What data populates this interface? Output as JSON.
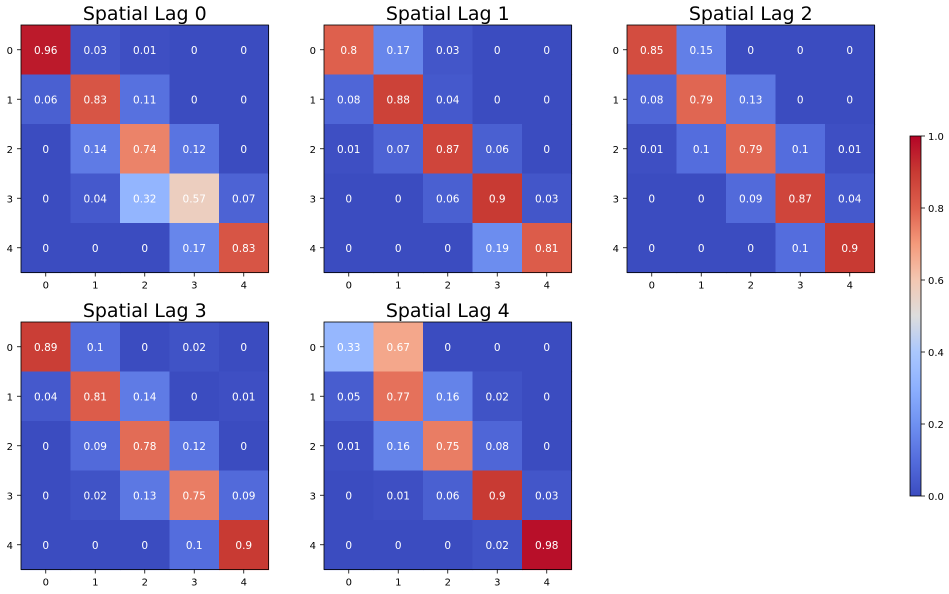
{
  "figure": {
    "colormap": "coolwarm",
    "colorbar": {
      "min": 0.0,
      "max": 1.0,
      "ticks": [
        "0.0",
        "0.2",
        "0.4",
        "0.6",
        "0.8",
        "1.0"
      ]
    }
  },
  "chart_data": [
    {
      "type": "heatmap",
      "title": "Spatial Lag 0",
      "x_ticks": [
        "0",
        "1",
        "2",
        "3",
        "4"
      ],
      "y_ticks": [
        "0",
        "1",
        "2",
        "3",
        "4"
      ],
      "values": [
        [
          0.96,
          0.03,
          0.01,
          0.0,
          0.0
        ],
        [
          0.06,
          0.83,
          0.11,
          0.0,
          0.0
        ],
        [
          0.0,
          0.14,
          0.74,
          0.12,
          0.0
        ],
        [
          0.0,
          0.04,
          0.32,
          0.57,
          0.07
        ],
        [
          0.0,
          0.0,
          0.0,
          0.17,
          0.83
        ]
      ]
    },
    {
      "type": "heatmap",
      "title": "Spatial Lag 1",
      "x_ticks": [
        "0",
        "1",
        "2",
        "3",
        "4"
      ],
      "y_ticks": [
        "0",
        "1",
        "2",
        "3",
        "4"
      ],
      "values": [
        [
          0.8,
          0.17,
          0.03,
          0.0,
          0.0
        ],
        [
          0.08,
          0.88,
          0.04,
          0.0,
          0.0
        ],
        [
          0.01,
          0.07,
          0.87,
          0.06,
          0.0
        ],
        [
          0.0,
          0.0,
          0.06,
          0.9,
          0.03
        ],
        [
          0.0,
          0.0,
          0.0,
          0.19,
          0.81
        ]
      ]
    },
    {
      "type": "heatmap",
      "title": "Spatial Lag 2",
      "x_ticks": [
        "0",
        "1",
        "2",
        "3",
        "4"
      ],
      "y_ticks": [
        "0",
        "1",
        "2",
        "3",
        "4"
      ],
      "values": [
        [
          0.85,
          0.15,
          0.0,
          0.0,
          0.0
        ],
        [
          0.08,
          0.79,
          0.13,
          0.0,
          0.0
        ],
        [
          0.01,
          0.1,
          0.79,
          0.1,
          0.01
        ],
        [
          0.0,
          0.0,
          0.09,
          0.87,
          0.04
        ],
        [
          0.0,
          0.0,
          0.0,
          0.1,
          0.9
        ]
      ]
    },
    {
      "type": "heatmap",
      "title": "Spatial Lag 3",
      "x_ticks": [
        "0",
        "1",
        "2",
        "3",
        "4"
      ],
      "y_ticks": [
        "0",
        "1",
        "2",
        "3",
        "4"
      ],
      "values": [
        [
          0.89,
          0.1,
          0.0,
          0.02,
          0.0
        ],
        [
          0.04,
          0.81,
          0.14,
          0.0,
          0.01
        ],
        [
          0.0,
          0.09,
          0.78,
          0.12,
          0.0
        ],
        [
          0.0,
          0.02,
          0.13,
          0.75,
          0.09
        ],
        [
          0.0,
          0.0,
          0.0,
          0.1,
          0.9
        ]
      ]
    },
    {
      "type": "heatmap",
      "title": "Spatial Lag 4",
      "x_ticks": [
        "0",
        "1",
        "2",
        "3",
        "4"
      ],
      "y_ticks": [
        "0",
        "1",
        "2",
        "3",
        "4"
      ],
      "values": [
        [
          0.33,
          0.67,
          0.0,
          0.0,
          0.0
        ],
        [
          0.05,
          0.77,
          0.16,
          0.02,
          0.0
        ],
        [
          0.01,
          0.16,
          0.75,
          0.08,
          0.0
        ],
        [
          0.0,
          0.01,
          0.06,
          0.9,
          0.03
        ],
        [
          0.0,
          0.0,
          0.0,
          0.02,
          0.98
        ]
      ]
    }
  ]
}
